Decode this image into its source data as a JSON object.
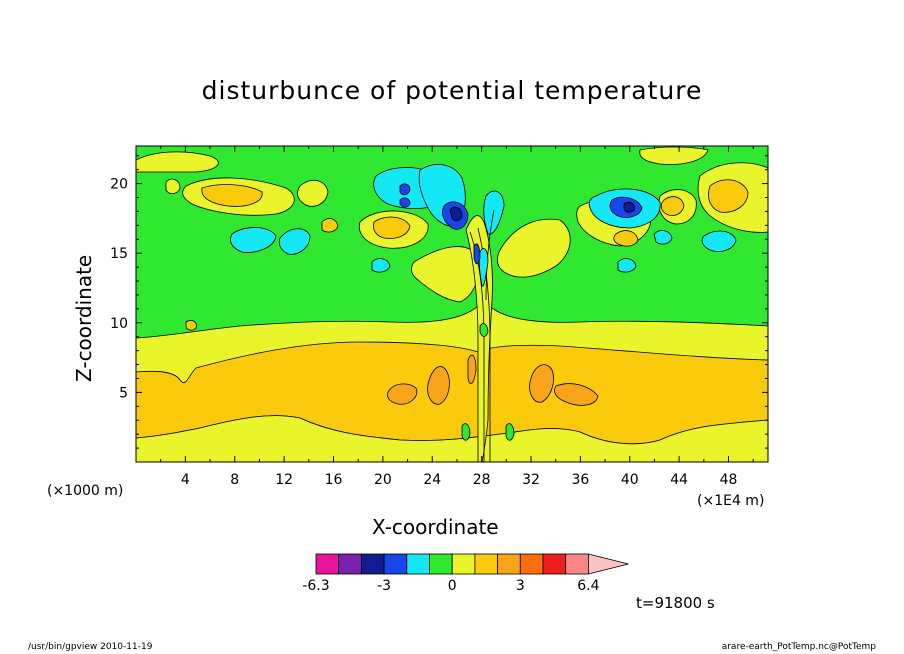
{
  "title": "disturbunce of potential temperature",
  "chart_data": {
    "type": "heatmap",
    "title": "disturbunce of potential temperature",
    "xlabel": "X-coordinate",
    "ylabel": "Z-coordinate",
    "x_unit_left": "(×1000 m)",
    "x_unit_right": "(×1E4 m)",
    "x_ticks": [
      4,
      8,
      12,
      16,
      20,
      24,
      28,
      32,
      36,
      40,
      44,
      48
    ],
    "y_ticks": [
      5,
      10,
      15,
      20
    ],
    "xlim": [
      0,
      51.2
    ],
    "ylim": [
      0,
      22.7
    ],
    "colorbar": {
      "colors": [
        "#e8159b",
        "#7a1fae",
        "#101c90",
        "#1747e8",
        "#14e8f5",
        "#2fe82f",
        "#e9f52a",
        "#f9cb0c",
        "#f9a51c",
        "#f96e0d",
        "#ee1e1e",
        "#f98787",
        "#f9c3c3"
      ],
      "labels": [
        {
          "value": "-6.3",
          "pos": 0
        },
        {
          "value": "-3",
          "pos": 3
        },
        {
          "value": "0",
          "pos": 6
        },
        {
          "value": "3",
          "pos": 9
        },
        {
          "value": "6.4",
          "pos": 12
        }
      ]
    },
    "time_label": "t=91800 s"
  },
  "footer": {
    "left": "/usr/bin/gpview   2010-11-19",
    "right": "arare-earth_PotTemp.nc@PotTemp"
  }
}
